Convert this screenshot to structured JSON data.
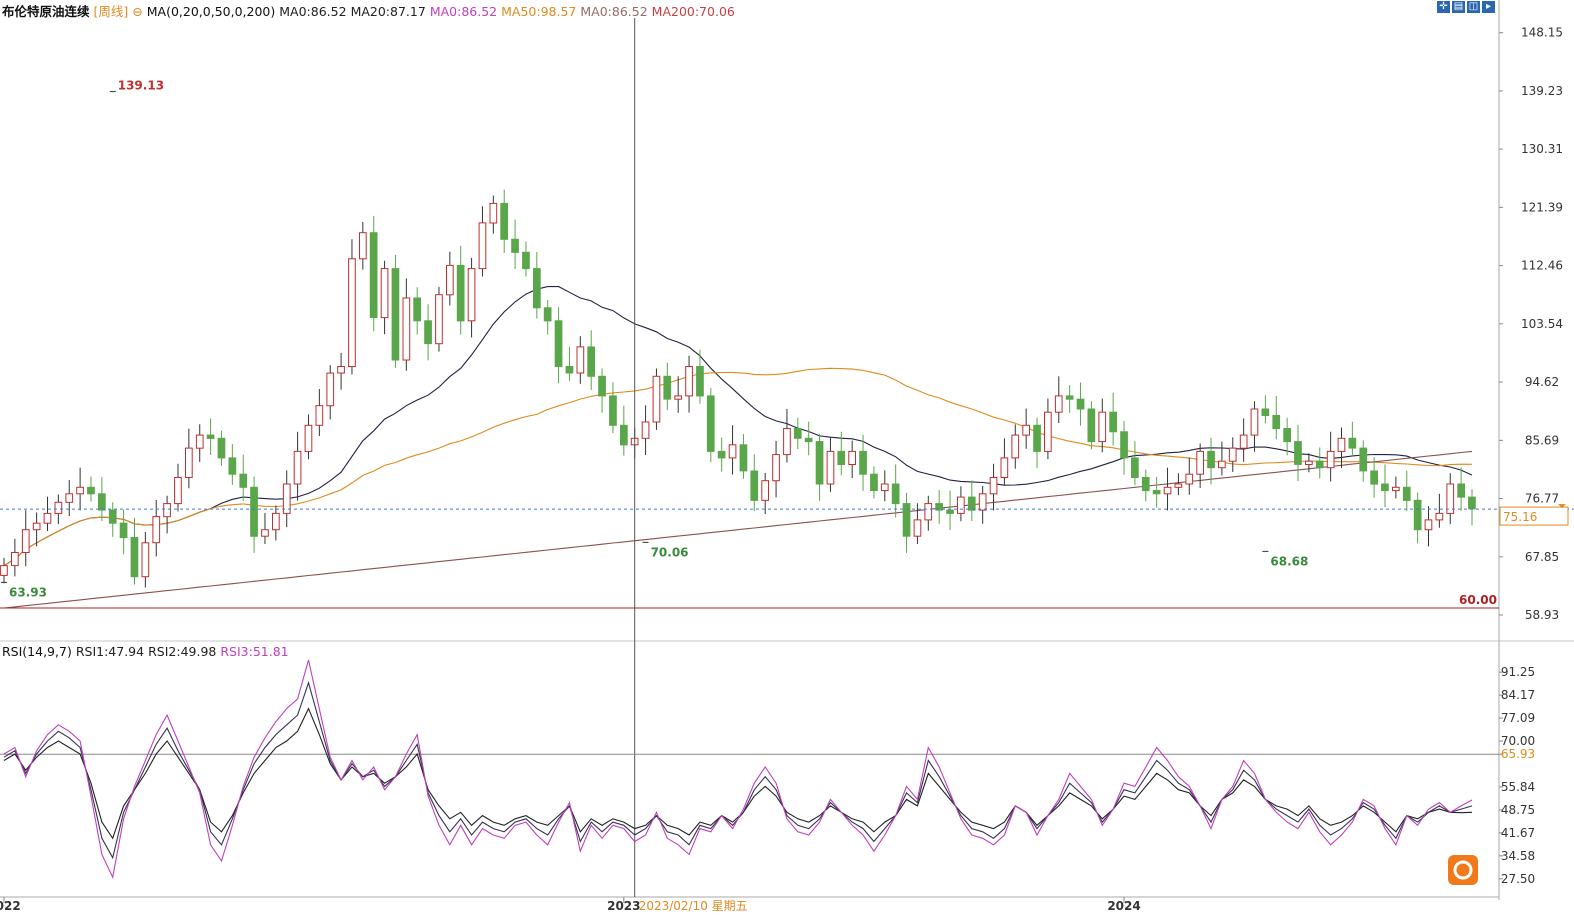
{
  "price_header": {
    "title": "布伦特原油连续",
    "period": "[周线]",
    "period_icon": "⊖",
    "ma_params": "MA(0,20,0,50,0,200)",
    "items": [
      {
        "text": "MA0:86.52",
        "color": "#222222"
      },
      {
        "text": "MA20:87.17",
        "color": "#222222"
      },
      {
        "text": "MA0:86.52",
        "color": "#c040c0"
      },
      {
        "text": "MA50:98.57",
        "color": "#e08a20"
      },
      {
        "text": "MA0:86.52",
        "color": "#9a6a6a"
      },
      {
        "text": "MA200:70.06",
        "color": "#c84040"
      }
    ]
  },
  "rsi_header": {
    "title": "RSI(14,9,7)",
    "items": [
      {
        "text": "RSI1:47.94",
        "color": "#222222"
      },
      {
        "text": "RSI2:49.98",
        "color": "#222222"
      },
      {
        "text": "RSI3:51.81",
        "color": "#c040c0"
      }
    ]
  },
  "toolbar": {
    "buttons": [
      {
        "name": "crosshair-icon",
        "glyph": "✛"
      },
      {
        "name": "layout-icon",
        "glyph": "▤"
      },
      {
        "name": "window-icon",
        "glyph": "◫"
      },
      {
        "name": "collapse-icon",
        "glyph": "▸"
      }
    ]
  },
  "chart_data": [
    {
      "type": "candlestick",
      "title": "布伦特原油连续 [周线]",
      "price_axis_ticks": [
        "148.15",
        "139.23",
        "130.31",
        "121.39",
        "112.46",
        "103.54",
        "94.62",
        "85.69",
        "76.77",
        "67.85",
        "58.93"
      ],
      "ylim": [
        55.1,
        150.4
      ],
      "x_labels": [
        "2022",
        "2023",
        "2024"
      ],
      "x_label_positions_week": [
        0,
        57,
        103
      ],
      "crosshair_label": "2023/02/10 星期五",
      "crosshair_week": 58,
      "last_price": "75.16",
      "reference_line": {
        "label": "60.00",
        "value": 60.0,
        "color": "#aa2222"
      },
      "current_price_line": 75.16,
      "annotations": [
        {
          "label": "139.13",
          "week": 10,
          "value": 139.13,
          "color": "#c03030"
        },
        {
          "label": "63.93",
          "week": 0,
          "value": 63.93,
          "color": "#3a8a3a"
        },
        {
          "label": "70.06",
          "week": 59,
          "value": 70.06,
          "color": "#3a8a3a"
        },
        {
          "label": "68.68",
          "week": 116,
          "value": 68.68,
          "color": "#3a8a3a"
        }
      ],
      "colors": {
        "up": "#c03030",
        "down": "#5aa64a",
        "ma20": "#222244",
        "ma50": "#e08a20",
        "ma200": "#8a5050"
      },
      "closes": [
        66.5,
        68.5,
        72.0,
        73.0,
        74.5,
        76.2,
        77.5,
        78.5,
        77.5,
        75.0,
        73.0,
        70.8,
        64.8,
        70.0,
        74.0,
        76.0,
        80.0,
        84.5,
        86.5,
        86.0,
        83.0,
        80.5,
        78.5,
        71.0,
        72.0,
        74.5,
        79.0,
        84.0,
        88.0,
        91.0,
        96.0,
        97.0,
        113.5,
        117.5,
        104.5,
        112.0,
        98.0,
        107.5,
        104.0,
        100.5,
        108.0,
        112.5,
        104.0,
        112.0,
        119.0,
        122.0,
        116.5,
        114.5,
        112.0,
        106.0,
        104.0,
        97.0,
        96.0,
        100.0,
        95.5,
        92.5,
        88.0,
        85.0,
        86.0,
        88.5,
        95.5,
        92.0,
        92.5,
        97.0,
        92.5,
        84.0,
        83.0,
        85.0,
        81.0,
        76.5,
        79.5,
        83.5,
        87.5,
        86.0,
        85.5,
        79.0,
        84.0,
        82.0,
        84.0,
        80.5,
        78.0,
        79.0,
        76.0,
        71.0,
        73.5,
        76.0,
        75.0,
        74.5,
        77.0,
        75.0,
        77.5,
        80.0,
        83.0,
        86.5,
        88.0,
        84.0,
        90.0,
        92.5,
        92.0,
        90.5,
        85.5,
        90.0,
        87.0,
        83.0,
        80.0,
        78.0,
        77.5,
        78.5,
        79.0,
        80.5,
        84.0,
        81.5,
        82.5,
        84.5,
        86.5,
        90.5,
        89.5,
        87.5,
        85.5,
        82.0,
        82.5,
        81.5,
        84.0,
        86.0,
        84.5,
        81.0,
        79.0,
        78.0,
        78.5,
        76.5,
        72.0,
        73.5,
        74.5,
        79.0,
        77.0,
        75.2
      ]
    },
    {
      "type": "line",
      "title": "RSI(14,9,7)",
      "axis_ticks": [
        "91.25",
        "84.17",
        "77.09",
        "70.00",
        "65.93",
        "55.84",
        "48.75",
        "41.67",
        "34.58",
        "27.50"
      ],
      "ylim": [
        22.5,
        95.0
      ],
      "reference_line": 65.93,
      "reference_label": "65.93",
      "x_labels": [
        "2022",
        "2023",
        "2024"
      ],
      "crosshair_week": 58,
      "series": [
        {
          "name": "RSI1",
          "color": "#222222",
          "values": [
            64,
            66,
            61,
            65,
            68,
            70,
            68,
            66,
            57,
            45,
            40,
            50,
            55,
            60,
            66,
            70,
            65,
            60,
            55,
            45,
            42,
            47,
            54,
            60,
            64,
            68,
            70,
            73,
            80,
            72,
            63,
            58,
            62,
            59,
            60,
            57,
            59,
            62,
            66,
            55,
            50,
            46,
            48,
            44,
            47,
            45,
            44,
            46,
            47,
            45,
            44,
            47,
            50,
            42,
            46,
            44,
            46,
            45,
            43,
            44,
            47,
            44,
            43,
            41,
            45,
            44,
            47,
            45,
            48,
            53,
            56,
            53,
            48,
            46,
            45,
            47,
            50,
            48,
            46,
            45,
            42,
            45,
            47,
            52,
            50,
            60,
            56,
            52,
            48,
            45,
            44,
            43,
            45,
            50,
            48,
            44,
            47,
            50,
            54,
            52,
            50,
            46,
            49,
            53,
            52,
            56,
            60,
            58,
            55,
            54,
            50,
            47,
            52,
            54,
            58,
            56,
            52,
            50,
            49,
            47,
            50,
            46,
            44,
            45,
            47,
            50,
            48,
            45,
            42,
            47,
            46,
            48,
            49,
            48,
            47.9,
            48.0
          ]
        },
        {
          "name": "RSI2",
          "color": "#333355",
          "values": [
            65,
            67,
            60,
            66,
            70,
            73,
            71,
            68,
            55,
            40,
            34,
            48,
            55,
            62,
            69,
            74,
            67,
            61,
            55,
            42,
            38,
            46,
            55,
            63,
            68,
            72,
            75,
            78,
            88,
            76,
            64,
            58,
            63,
            59,
            61,
            56,
            59,
            64,
            69,
            54,
            47,
            42,
            46,
            41,
            45,
            43,
            42,
            45,
            46,
            43,
            41,
            46,
            50,
            39,
            45,
            42,
            45,
            44,
            41,
            43,
            47,
            42,
            41,
            38,
            44,
            43,
            47,
            44,
            48,
            55,
            59,
            55,
            47,
            44,
            43,
            46,
            51,
            48,
            45,
            43,
            39,
            43,
            47,
            54,
            51,
            64,
            59,
            53,
            47,
            43,
            42,
            40,
            43,
            50,
            48,
            43,
            47,
            51,
            57,
            54,
            51,
            45,
            49,
            55,
            54,
            59,
            64,
            61,
            57,
            55,
            50,
            45,
            52,
            55,
            61,
            58,
            52,
            49,
            47,
            45,
            49,
            44,
            41,
            43,
            46,
            51,
            49,
            44,
            40,
            47,
            45,
            48,
            50,
            48,
            49,
            50.0
          ]
        },
        {
          "name": "RSI3",
          "color": "#c040c0",
          "values": [
            66,
            68,
            59,
            67,
            72,
            75,
            73,
            70,
            53,
            35,
            28,
            46,
            56,
            64,
            72,
            78,
            70,
            62,
            54,
            38,
            33,
            44,
            56,
            65,
            71,
            76,
            80,
            83,
            95,
            80,
            65,
            58,
            64,
            58,
            62,
            55,
            59,
            66,
            72,
            53,
            44,
            38,
            44,
            38,
            43,
            41,
            40,
            44,
            45,
            41,
            38,
            45,
            51,
            36,
            44,
            40,
            44,
            43,
            39,
            41,
            48,
            40,
            38,
            35,
            43,
            42,
            47,
            43,
            49,
            57,
            62,
            57,
            46,
            42,
            41,
            45,
            52,
            48,
            44,
            41,
            36,
            41,
            47,
            56,
            52,
            68,
            62,
            54,
            46,
            41,
            40,
            38,
            41,
            50,
            48,
            41,
            47,
            52,
            60,
            56,
            52,
            44,
            49,
            57,
            56,
            62,
            68,
            64,
            59,
            56,
            50,
            43,
            52,
            56,
            64,
            60,
            52,
            48,
            45,
            43,
            48,
            42,
            38,
            41,
            45,
            52,
            50,
            43,
            38,
            47,
            44,
            49,
            51,
            48,
            50,
            51.8
          ]
        }
      ]
    }
  ]
}
